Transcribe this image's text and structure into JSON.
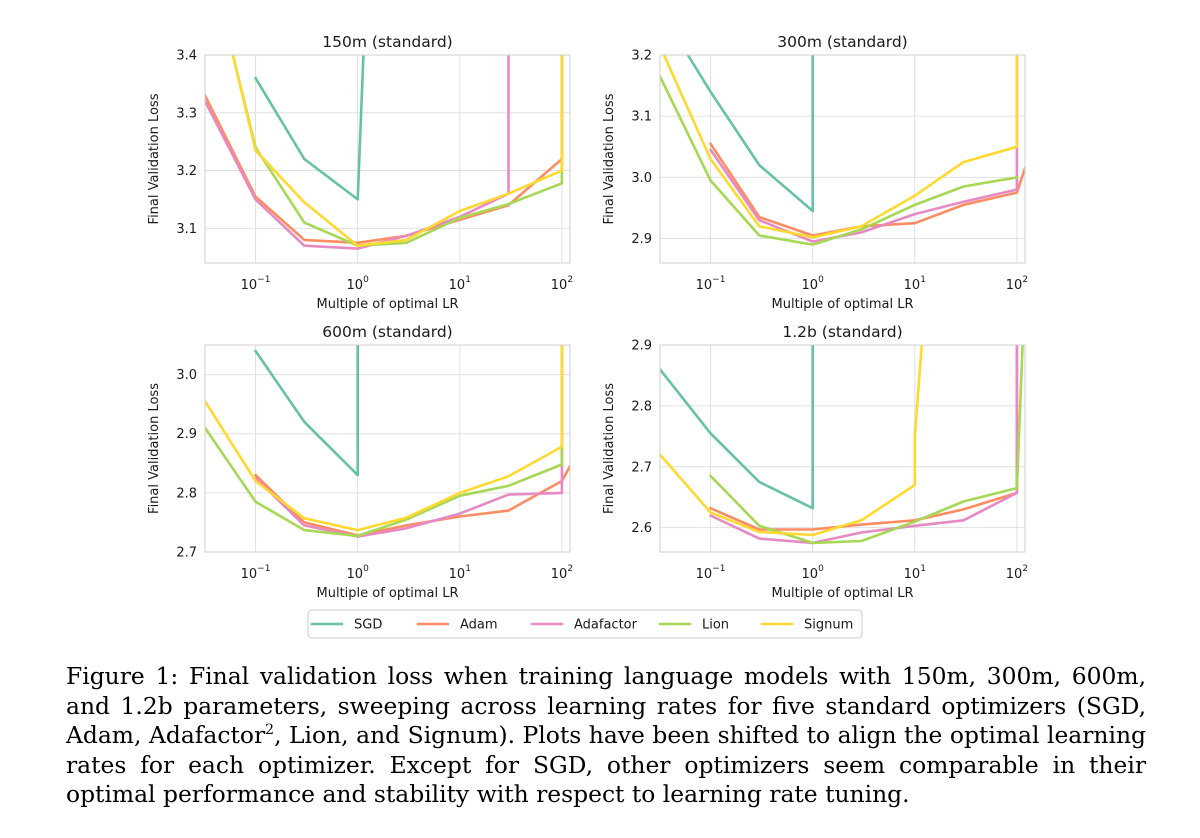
{
  "x_tick_labels": {
    "t1": {
      "base": "10",
      "exp": "−1"
    },
    "t2": {
      "base": "10",
      "exp": "0"
    },
    "t3": {
      "base": "10",
      "exp": "1"
    },
    "t4": {
      "base": "10",
      "exp": "2"
    }
  },
  "legend": {
    "entries": [
      {
        "name": "SGD",
        "color": "#66c2a5"
      },
      {
        "name": "Adam",
        "color": "#fc8d62"
      },
      {
        "name": "Adafactor",
        "color": "#e78ac3"
      },
      {
        "name": "Lion",
        "color": "#a6d854"
      },
      {
        "name": "Signum",
        "color": "#ffd92f"
      }
    ]
  },
  "chart_data": [
    {
      "type": "line",
      "title": "150m (standard)",
      "xlabel": "Multiple of optimal LR",
      "ylabel": "Final Validation Loss",
      "xscale": "log",
      "xlim": [
        0.032,
        120
      ],
      "ylim": [
        3.04,
        3.4
      ],
      "yticks": [
        3.1,
        3.2,
        3.3,
        3.4
      ],
      "ytick_labels": [
        "3.1",
        "3.2",
        "3.3",
        "3.4"
      ],
      "xticks": [
        0.1,
        1,
        10,
        100
      ],
      "series": [
        {
          "name": "SGD",
          "x": [
            0.1,
            0.3,
            1,
            1.2
          ],
          "y": [
            3.36,
            3.22,
            3.15,
            3.5
          ]
        },
        {
          "name": "Adam",
          "x": [
            0.03,
            0.1,
            0.3,
            1,
            3,
            10,
            30,
            100,
            100
          ],
          "y": [
            3.34,
            3.155,
            3.08,
            3.075,
            3.087,
            3.115,
            3.14,
            3.22,
            3.5
          ]
        },
        {
          "name": "Adafactor",
          "x": [
            0.03,
            0.1,
            0.3,
            1,
            3,
            10,
            30,
            30
          ],
          "y": [
            3.33,
            3.15,
            3.07,
            3.065,
            3.087,
            3.12,
            3.16,
            3.5
          ]
        },
        {
          "name": "Lion",
          "x": [
            0.06,
            0.1,
            0.3,
            1,
            3,
            10,
            30,
            100,
            100
          ],
          "y": [
            3.4,
            3.24,
            3.11,
            3.07,
            3.075,
            3.118,
            3.142,
            3.178,
            3.5
          ]
        },
        {
          "name": "Signum",
          "x": [
            0.06,
            0.1,
            0.3,
            1,
            3,
            10,
            30,
            100,
            100
          ],
          "y": [
            3.4,
            3.235,
            3.145,
            3.07,
            3.08,
            3.13,
            3.16,
            3.2,
            3.5
          ]
        }
      ]
    },
    {
      "type": "line",
      "title": "300m (standard)",
      "xlabel": "Multiple of optimal LR",
      "ylabel": "Final Validation Loss",
      "xscale": "log",
      "xlim": [
        0.032,
        120
      ],
      "ylim": [
        2.86,
        3.2
      ],
      "yticks": [
        2.9,
        3.0,
        3.1,
        3.2
      ],
      "ytick_labels": [
        "2.9",
        "3.0",
        "3.1",
        "3.2"
      ],
      "xticks": [
        0.1,
        1,
        10,
        100
      ],
      "series": [
        {
          "name": "SGD",
          "x": [
            0.06,
            0.1,
            0.3,
            1,
            1
          ],
          "y": [
            3.2,
            3.14,
            3.02,
            2.945,
            3.3
          ]
        },
        {
          "name": "Adam",
          "x": [
            0.1,
            0.3,
            1,
            3,
            10,
            30,
            100,
            120
          ],
          "y": [
            3.055,
            2.935,
            2.905,
            2.92,
            2.925,
            2.955,
            2.975,
            3.015
          ]
        },
        {
          "name": "Adafactor",
          "x": [
            0.1,
            0.3,
            1,
            3,
            10,
            30,
            100,
            100
          ],
          "y": [
            3.045,
            2.93,
            2.895,
            2.91,
            2.94,
            2.96,
            2.98,
            3.3
          ]
        },
        {
          "name": "Lion",
          "x": [
            0.032,
            0.1,
            0.3,
            1,
            3,
            10,
            30,
            100
          ],
          "y": [
            3.165,
            2.995,
            2.905,
            2.89,
            2.915,
            2.955,
            2.985,
            3.0
          ]
        },
        {
          "name": "Signum",
          "x": [
            0.035,
            0.1,
            0.3,
            1,
            3,
            10,
            30,
            100,
            100
          ],
          "y": [
            3.2,
            3.03,
            2.92,
            2.902,
            2.92,
            2.97,
            3.025,
            3.05,
            3.3
          ]
        }
      ]
    },
    {
      "type": "line",
      "title": "600m (standard)",
      "xlabel": "Multiple of optimal LR",
      "ylabel": "Final Validation Loss",
      "xscale": "log",
      "xlim": [
        0.032,
        120
      ],
      "ylim": [
        2.7,
        3.05
      ],
      "yticks": [
        2.7,
        2.8,
        2.9,
        3.0
      ],
      "ytick_labels": [
        "2.7",
        "2.8",
        "2.9",
        "3.0"
      ],
      "xticks": [
        0.1,
        1,
        10,
        100
      ],
      "series": [
        {
          "name": "SGD",
          "x": [
            0.1,
            0.3,
            1,
            1
          ],
          "y": [
            3.04,
            2.92,
            2.83,
            3.2
          ]
        },
        {
          "name": "Adam",
          "x": [
            0.1,
            0.3,
            1,
            3,
            10,
            30,
            100,
            120
          ],
          "y": [
            2.83,
            2.75,
            2.728,
            2.745,
            2.76,
            2.77,
            2.82,
            2.845
          ]
        },
        {
          "name": "Adafactor",
          "x": [
            0.1,
            0.3,
            1,
            3,
            10,
            30,
            100,
            100
          ],
          "y": [
            2.825,
            2.745,
            2.726,
            2.74,
            2.765,
            2.797,
            2.8,
            3.2
          ]
        },
        {
          "name": "Lion",
          "x": [
            0.032,
            0.1,
            0.3,
            1,
            3,
            10,
            30,
            100,
            100
          ],
          "y": [
            2.91,
            2.785,
            2.737,
            2.727,
            2.755,
            2.795,
            2.812,
            2.848,
            3.2
          ]
        },
        {
          "name": "Signum",
          "x": [
            0.032,
            0.1,
            0.3,
            1,
            3,
            10,
            30,
            100,
            100
          ],
          "y": [
            2.955,
            2.82,
            2.757,
            2.737,
            2.758,
            2.8,
            2.828,
            2.878,
            3.2
          ]
        }
      ]
    },
    {
      "type": "line",
      "title": "1.2b (standard)",
      "xlabel": "Multiple of optimal LR",
      "ylabel": "Final Validation Loss",
      "xscale": "log",
      "xlim": [
        0.032,
        120
      ],
      "ylim": [
        2.56,
        2.9
      ],
      "yticks": [
        2.6,
        2.7,
        2.8,
        2.9
      ],
      "ytick_labels": [
        "2.6",
        "2.7",
        "2.8",
        "2.9"
      ],
      "xticks": [
        0.1,
        1,
        10,
        100
      ],
      "series": [
        {
          "name": "SGD",
          "x": [
            0.032,
            0.1,
            0.3,
            1,
            1
          ],
          "y": [
            2.86,
            2.755,
            2.675,
            2.632,
            3.0
          ]
        },
        {
          "name": "Adam",
          "x": [
            0.1,
            0.3,
            1,
            3,
            10,
            30,
            100,
            100
          ],
          "y": [
            2.632,
            2.597,
            2.597,
            2.605,
            2.612,
            2.63,
            2.657,
            3.0
          ]
        },
        {
          "name": "Adafactor",
          "x": [
            0.1,
            0.3,
            1,
            3,
            10,
            30,
            100,
            100
          ],
          "y": [
            2.62,
            2.582,
            2.575,
            2.592,
            2.603,
            2.612,
            2.657,
            3.0
          ]
        },
        {
          "name": "Lion",
          "x": [
            0.1,
            0.3,
            1,
            3,
            10,
            30,
            100,
            120
          ],
          "y": [
            2.685,
            2.603,
            2.575,
            2.578,
            2.61,
            2.643,
            2.665,
            3.0
          ]
        },
        {
          "name": "Signum",
          "x": [
            0.032,
            0.1,
            0.3,
            1,
            3,
            10,
            10,
            13
          ],
          "y": [
            2.72,
            2.625,
            2.593,
            2.588,
            2.612,
            2.67,
            2.75,
            3.0
          ]
        }
      ]
    }
  ],
  "caption": {
    "text_before_sup": "Figure 1: Final validation loss when training language models with 150m, 300m, 600m, and 1.2b parameters, sweeping across learning rates for five standard optimizers (SGD, Adam, Adafactor",
    "sup": "2",
    "text_after_sup": ", Lion, and Signum). Plots have been shifted to align the optimal learning rates for each optimizer. Except for SGD, other optimizers seem comparable in their optimal performance and stability with respect to learning rate tuning."
  }
}
